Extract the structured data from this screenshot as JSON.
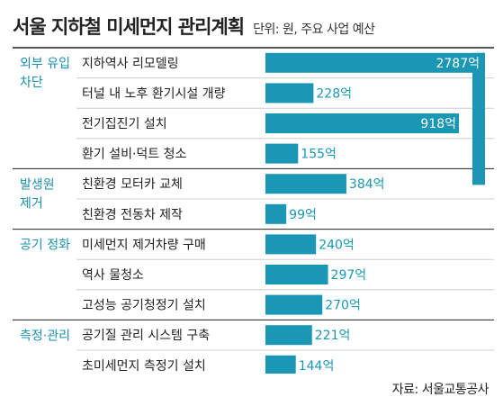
{
  "header": {
    "title": "서울 지하철 미세먼지 관리계획",
    "unit": "단위: 원, 주요 사업 예산"
  },
  "footer": {
    "source": "자료: 서울교통공사"
  },
  "colors": {
    "bar": "#1a97b5",
    "group_label": "#1a8fb0",
    "rule": "#222222",
    "row_divider": "#cccccc",
    "value_outside": "#1a97b5",
    "value_inside": "#ffffff"
  },
  "chart_data": {
    "type": "bar",
    "orientation": "horizontal",
    "unit_suffix": "억",
    "groups": [
      {
        "label": [
          "외부 유입",
          "차단"
        ],
        "start": 0,
        "end": 4
      },
      {
        "label": [
          "발생원",
          "제거"
        ],
        "start": 4,
        "end": 6
      },
      {
        "label": [
          "공기 정화"
        ],
        "start": 6,
        "end": 9
      },
      {
        "label": [
          "측정·관리"
        ],
        "start": 9,
        "end": 11
      }
    ],
    "categories": [
      "지하역사 리모델링",
      "터널 내 노후 환기시설 개량",
      "전기집진기 설치",
      "환기 설비·덕트 청소",
      "친환경 모터카 교체",
      "친환경 전동차 제작",
      "미세먼지 제거차량 구매",
      "역사 물청소",
      "고성능 공기청정기 설치",
      "공기질 관리 시스템 구축",
      "초미세먼지 측정기 설치"
    ],
    "values": [
      2787,
      228,
      918,
      155,
      384,
      99,
      240,
      297,
      270,
      221,
      144
    ],
    "value_labels": [
      "2787억",
      "228억",
      "918억",
      "155억",
      "384억",
      "99억",
      "240억",
      "297억",
      "270억",
      "221억",
      "144억"
    ],
    "broken_bar_index": 0
  }
}
